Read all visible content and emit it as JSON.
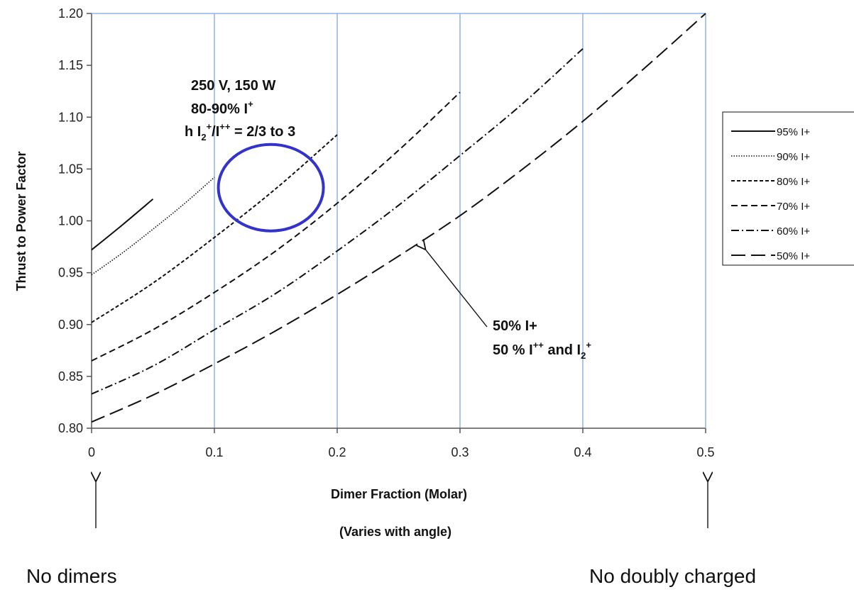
{
  "chart_data": {
    "type": "line",
    "title": "",
    "xlabel": "Dimer Fraction (Molar)",
    "xlabel_note": "(Varies with angle)",
    "ylabel": "Thrust to Power Factor",
    "xlim": [
      0,
      0.5
    ],
    "ylim": [
      0.8,
      1.2
    ],
    "x_ticks": [
      0,
      0.1,
      0.2,
      0.3,
      0.4,
      0.5
    ],
    "x_tick_labels": [
      "0",
      "0.1",
      "0.2",
      "0.3",
      "0.4",
      "0.5"
    ],
    "y_ticks": [
      0.8,
      0.85,
      0.9,
      0.95,
      1.0,
      1.05,
      1.1,
      1.15,
      1.2
    ],
    "y_tick_labels": [
      "0.80",
      "0.85",
      "0.90",
      "0.95",
      "1.00",
      "1.05",
      "1.10",
      "1.15",
      "1.20"
    ],
    "grid": "vertical",
    "legend_position": "right",
    "series": [
      {
        "name": "95% I+",
        "dash": "solid",
        "x": [
          0,
          0.025,
          0.05
        ],
        "y": [
          0.972,
          0.996,
          1.021
        ]
      },
      {
        "name": "90% I+",
        "dash": "dotted",
        "x": [
          0,
          0.025,
          0.05,
          0.075,
          0.1
        ],
        "y": [
          0.948,
          0.969,
          0.992,
          1.016,
          1.042
        ]
      },
      {
        "name": "80% I+",
        "dash": "short-dash",
        "x": [
          0,
          0.05,
          0.1,
          0.15,
          0.2
        ],
        "y": [
          0.902,
          0.94,
          0.984,
          1.031,
          1.083
        ]
      },
      {
        "name": "70% I+",
        "dash": "dash",
        "x": [
          0,
          0.05,
          0.1,
          0.15,
          0.2,
          0.25,
          0.3
        ],
        "y": [
          0.865,
          0.895,
          0.931,
          0.971,
          1.017,
          1.068,
          1.124
        ]
      },
      {
        "name": "60% I+",
        "dash": "dash-dot",
        "x": [
          0,
          0.05,
          0.1,
          0.15,
          0.2,
          0.25,
          0.3,
          0.35,
          0.4
        ],
        "y": [
          0.833,
          0.86,
          0.895,
          0.93,
          0.971,
          1.015,
          1.063,
          1.112,
          1.166
        ]
      },
      {
        "name": "50% I+",
        "dash": "long-dash",
        "x": [
          0,
          0.05,
          0.1,
          0.15,
          0.2,
          0.25,
          0.3,
          0.35,
          0.4,
          0.45,
          0.5
        ],
        "y": [
          0.806,
          0.832,
          0.862,
          0.894,
          0.929,
          0.966,
          1.005,
          1.049,
          1.096,
          1.147,
          1.2
        ]
      }
    ],
    "annotations": {
      "top_box": {
        "line1": "250 V, 150 W",
        "line2_pre": "80-90% I",
        "line2_sup": "+",
        "line3_pre": "h I",
        "line3_sub": "2",
        "line3_sup1": "+",
        "line3_mid": "/I",
        "line3_sup2": "++",
        "line3_post": " = 2/3 to 3",
        "ellipse_center": [
          0.146,
          1.032
        ],
        "ellipse_color": "#3333cc"
      },
      "arrow_note": {
        "line1": "50% I+",
        "line2_pre": "50 % I",
        "line2_sup1": "++",
        "line2_mid": " and I",
        "line2_sub": "2",
        "line2_sup2": "+",
        "points_to": [
          0.268,
          0.975
        ]
      },
      "left_note": "No dimers",
      "right_note": "No doubly charged"
    },
    "colors": {
      "lines": "#111111",
      "grid": "#8db3e2",
      "ellipse": "#3333cc"
    }
  }
}
